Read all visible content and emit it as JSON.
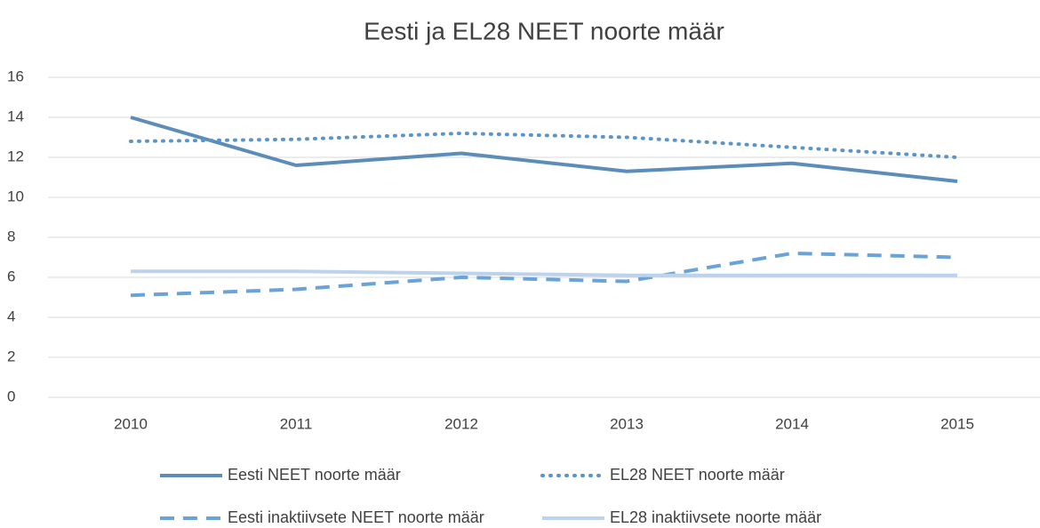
{
  "chart_data": {
    "type": "line",
    "title": "Eesti ja EL28 NEET noorte määr",
    "categories": [
      "2010",
      "2011",
      "2012",
      "2013",
      "2014",
      "2015"
    ],
    "series": [
      {
        "name": "Eesti NEET noorte määr",
        "color": "#5b8db8",
        "style": "solid",
        "values": [
          14.0,
          11.6,
          12.2,
          11.3,
          11.7,
          10.8
        ]
      },
      {
        "name": "EL28 NEET noorte määr",
        "color": "#5b95c8",
        "style": "dotted",
        "values": [
          12.8,
          12.9,
          13.2,
          13.0,
          12.5,
          12.0
        ]
      },
      {
        "name": "Eesti inaktiivsete NEET noorte määr",
        "color": "#6aa3d8",
        "style": "dashed",
        "values": [
          5.1,
          5.4,
          6.0,
          5.8,
          7.2,
          7.0
        ]
      },
      {
        "name": "EL28 inaktiivsete noorte määr",
        "color": "#bdd3ec",
        "style": "solid",
        "values": [
          6.3,
          6.3,
          6.2,
          6.1,
          6.1,
          6.1
        ]
      }
    ],
    "ylim": [
      0,
      16
    ],
    "yticks": [
      0,
      2,
      4,
      6,
      8,
      10,
      12,
      14,
      16
    ],
    "grid": true
  }
}
